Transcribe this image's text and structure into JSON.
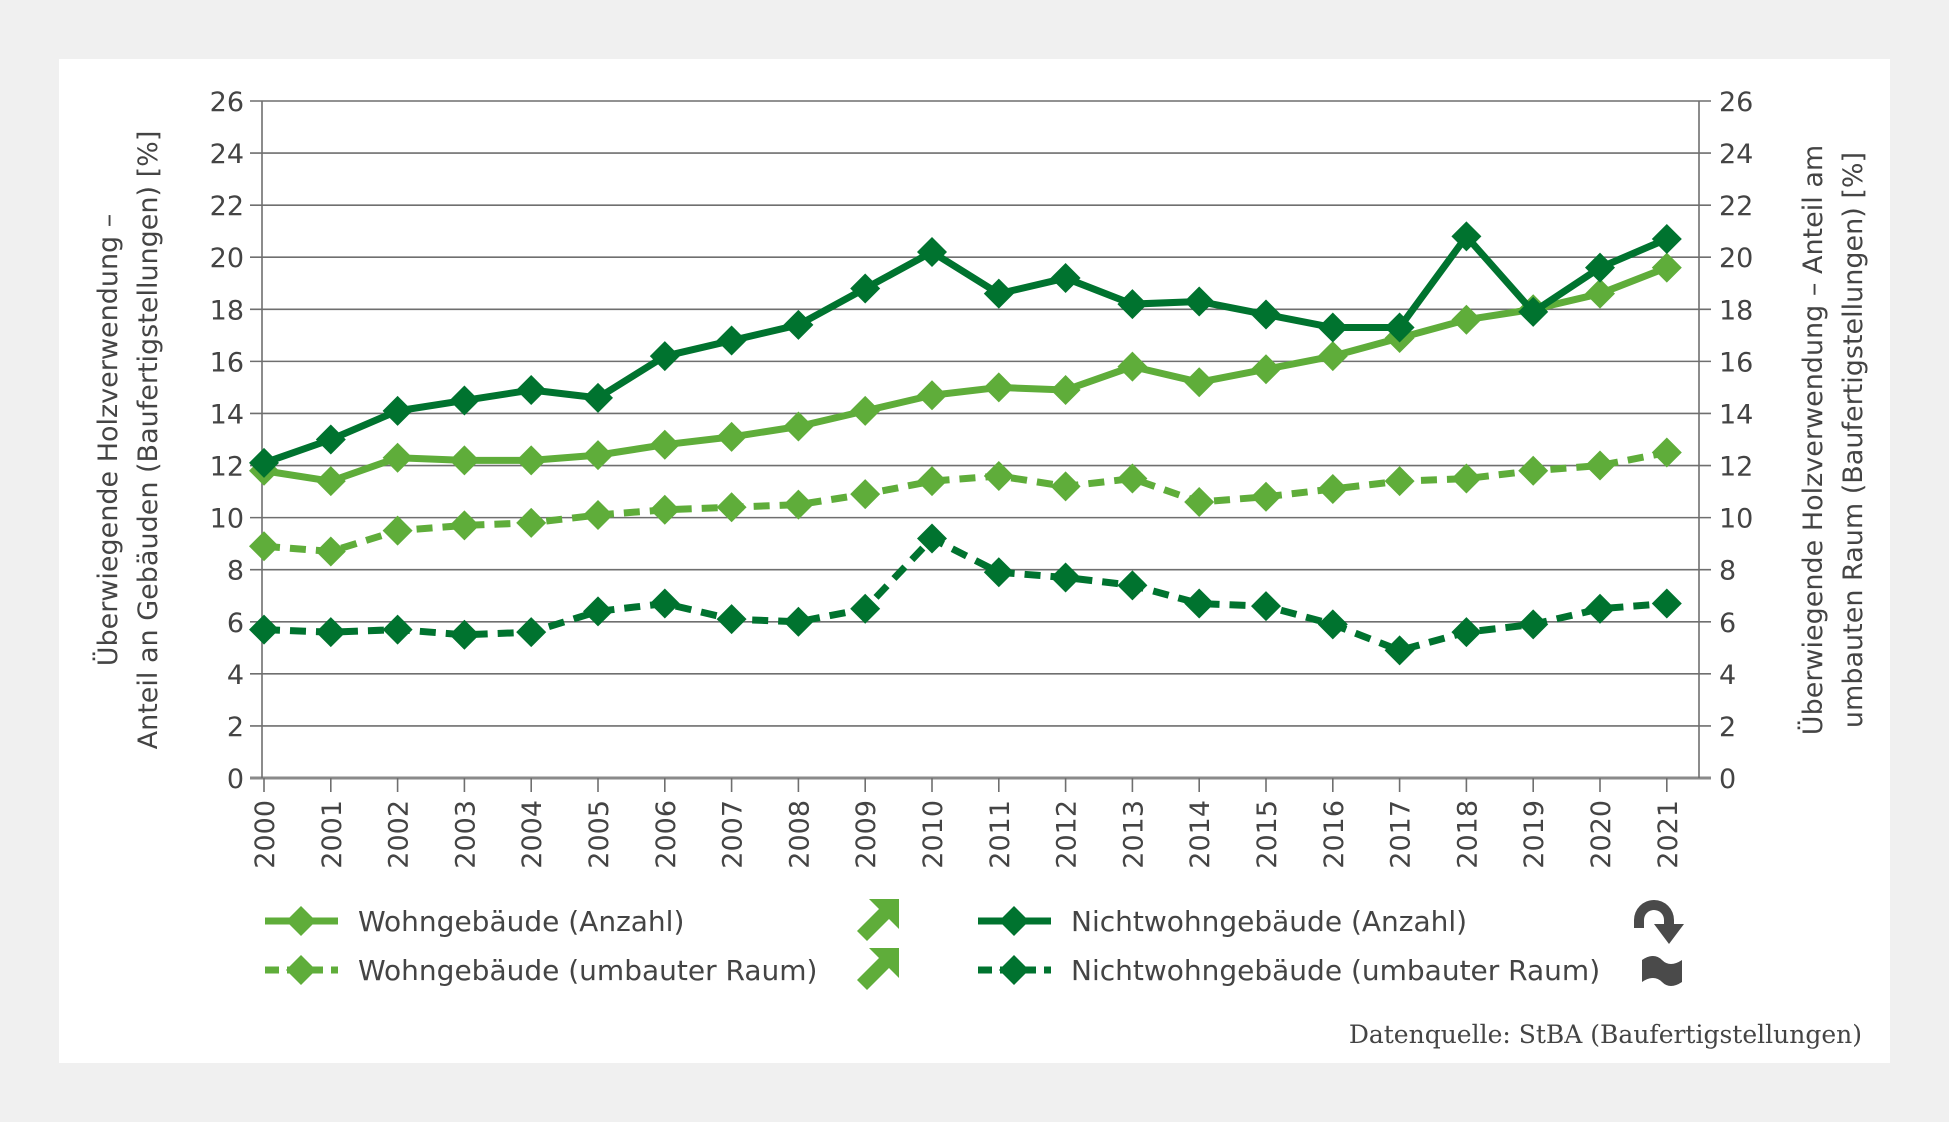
{
  "chart_data": {
    "type": "line",
    "title": "",
    "xlabel": "",
    "ylabel_left": [
      "Überwiegende Holzverwendung –",
      "Anteil an Gebäuden (Baufertigstellungen) [%]"
    ],
    "ylabel_right": [
      "Überwiegende Holzverwendung – Anteil am",
      "umbauten Raum (Baufertigstellungen) [%]"
    ],
    "ylim": [
      0,
      26
    ],
    "yticks": [
      "0",
      "2",
      "4",
      "6",
      "8",
      "10",
      "12",
      "14",
      "16",
      "18",
      "20",
      "22",
      "24",
      "26"
    ],
    "grid": true,
    "x": [
      "2000",
      "2001",
      "2002",
      "2003",
      "2004",
      "2005",
      "2006",
      "2007",
      "2008",
      "2009",
      "2010",
      "2011",
      "2012",
      "2013",
      "2014",
      "2015",
      "2016",
      "2017",
      "2018",
      "2019",
      "2020",
      "2021"
    ],
    "series": [
      {
        "name": "Wohngebäude (Anzahl)",
        "color": "#5fad3a",
        "dashed": false,
        "trend_icon": "arrow-up-right",
        "values": [
          11.8,
          11.4,
          12.3,
          12.2,
          12.2,
          12.4,
          12.8,
          13.1,
          13.5,
          14.1,
          14.7,
          15.0,
          14.9,
          15.8,
          15.2,
          15.7,
          16.2,
          16.9,
          17.6,
          18.0,
          18.6,
          19.6
        ]
      },
      {
        "name": "Wohngebäude (umbauter Raum)",
        "color": "#5fad3a",
        "dashed": true,
        "trend_icon": "arrow-up-right",
        "values": [
          8.9,
          8.7,
          9.5,
          9.7,
          9.8,
          10.1,
          10.3,
          10.4,
          10.5,
          10.9,
          11.4,
          11.6,
          11.2,
          11.5,
          10.6,
          10.8,
          11.1,
          11.4,
          11.5,
          11.8,
          12.0,
          12.5
        ]
      },
      {
        "name": "Nichtwohngebäude (Anzahl)",
        "color": "#00732f",
        "dashed": false,
        "trend_icon": "curved-arrow",
        "values": [
          12.1,
          13.0,
          14.1,
          14.5,
          14.9,
          14.6,
          16.2,
          16.8,
          17.4,
          18.8,
          20.2,
          18.6,
          19.2,
          18.2,
          18.3,
          17.8,
          17.3,
          17.3,
          20.8,
          17.9,
          19.6,
          20.7
        ]
      },
      {
        "name": "Nichtwohngebäude (umbauter Raum)",
        "color": "#00732f",
        "dashed": true,
        "trend_icon": "tilde",
        "values": [
          5.7,
          5.6,
          5.7,
          5.5,
          5.6,
          6.4,
          6.7,
          6.1,
          6.0,
          6.5,
          9.2,
          7.9,
          7.7,
          7.4,
          6.7,
          6.6,
          5.9,
          4.9,
          5.6,
          5.9,
          6.5,
          6.7
        ]
      }
    ],
    "legend_position": "bottom",
    "source": "Datenquelle: StBA (Baufertigstellungen)"
  },
  "colors": {
    "background": "#f0f0f0",
    "panel": "#ffffff",
    "text": "#444444",
    "grid": "#808080",
    "trend_up": "#5fad3a",
    "trend_neutral": "#4a4a4a"
  }
}
